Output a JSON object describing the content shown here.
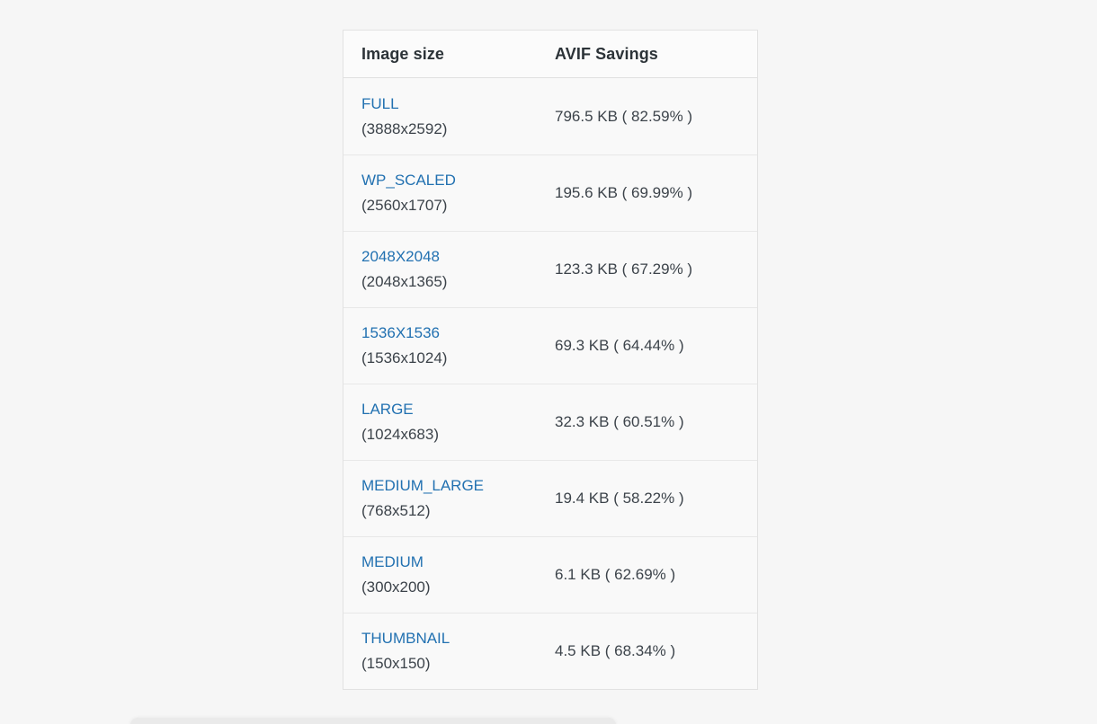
{
  "table": {
    "headers": [
      {
        "label": "Image size"
      },
      {
        "label": "AVIF Savings"
      }
    ],
    "rows": [
      {
        "name": "FULL",
        "dimensions": "(3888x2592)",
        "savings": "796.5 KB ( 82.59% )"
      },
      {
        "name": "WP_SCALED",
        "dimensions": "(2560x1707)",
        "savings": "195.6 KB ( 69.99% )"
      },
      {
        "name": "2048X2048",
        "dimensions": "(2048x1365)",
        "savings": "123.3 KB ( 67.29% )"
      },
      {
        "name": "1536X1536",
        "dimensions": "(1536x1024)",
        "savings": "69.3 KB ( 64.44% )"
      },
      {
        "name": "LARGE",
        "dimensions": "(1024x683)",
        "savings": "32.3 KB ( 60.51% )"
      },
      {
        "name": "MEDIUM_LARGE",
        "dimensions": "(768x512)",
        "savings": "19.4 KB ( 58.22% )"
      },
      {
        "name": "MEDIUM",
        "dimensions": "(300x200)",
        "savings": "6.1 KB ( 62.69% )"
      },
      {
        "name": "THUMBNAIL",
        "dimensions": "(150x150)",
        "savings": "4.5 KB ( 68.34% )"
      }
    ],
    "colors": {
      "link": "#2271b1",
      "header_text": "#2c3338",
      "body_text": "#3c434a",
      "border": "#e2e2e2",
      "row_separator": "#e8e8e8",
      "header_bg": "#fbfbfb",
      "row_bg": "#f9f9f9",
      "page_bg": "#f6f6f6"
    }
  }
}
